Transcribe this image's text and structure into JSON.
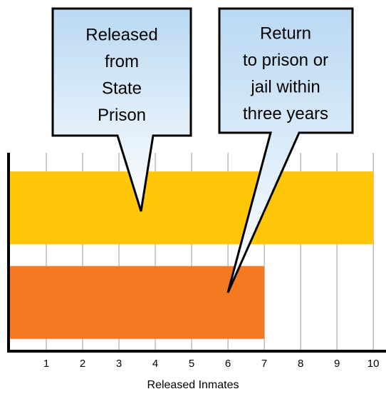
{
  "chart_data": {
    "type": "bar",
    "orientation": "horizontal",
    "x_label": "Released Inmates",
    "categories": [
      null,
      null
    ],
    "values": [
      10,
      7
    ],
    "colors": [
      "#FFC708",
      "#F37A21"
    ],
    "xlim": [
      0,
      10.35
    ],
    "xticks": [
      1,
      2,
      3,
      4,
      5,
      6,
      7,
      8,
      9,
      10
    ],
    "grid": true,
    "annotations": [
      {
        "lines": [
          "Released",
          "from",
          "State",
          "Prison"
        ]
      },
      {
        "lines": [
          "Return",
          "to prison or",
          "jail within",
          "three years"
        ]
      }
    ]
  }
}
